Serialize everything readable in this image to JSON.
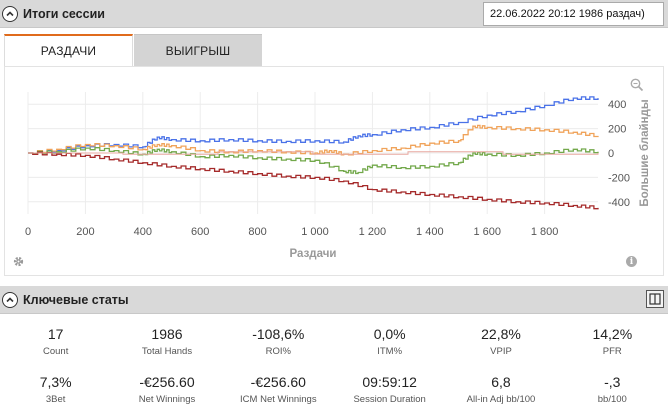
{
  "session_header": {
    "title": "Итоги сессии",
    "selected_session": "22.06.2022 20:12 1986 раздач)"
  },
  "tabs": [
    {
      "label": "РАЗДАЧИ",
      "active": true
    },
    {
      "label": "ВЫИГРЫШ",
      "active": false
    }
  ],
  "chart_data": {
    "type": "line",
    "xlabel": "Раздачи",
    "ylabel": "Большие блайнды",
    "x_ticks": [
      "0",
      "200",
      "400",
      "600",
      "800",
      "1 000",
      "1 200",
      "1 400",
      "1 600",
      "1 800"
    ],
    "y_ticks": [
      "400",
      "200",
      "0",
      "-200",
      "-400"
    ],
    "xlim": [
      0,
      1986
    ],
    "ylim": [
      -500,
      500
    ],
    "grid": true,
    "series": [
      {
        "color": "#4a72e8",
        "x": [
          0,
          100,
          200,
          300,
          400,
          450,
          500,
          600,
          700,
          800,
          900,
          1000,
          1100,
          1150,
          1200,
          1300,
          1400,
          1500,
          1600,
          1700,
          1800,
          1900,
          1986
        ],
        "y": [
          0,
          20,
          60,
          70,
          50,
          130,
          110,
          100,
          110,
          100,
          95,
          100,
          90,
          140,
          150,
          190,
          210,
          250,
          310,
          340,
          390,
          450,
          450
        ]
      },
      {
        "color": "#f0a35a",
        "x": [
          0,
          100,
          200,
          300,
          400,
          450,
          500,
          600,
          700,
          800,
          900,
          1000,
          1050,
          1100,
          1200,
          1300,
          1400,
          1500,
          1550,
          1600,
          1700,
          1800,
          1900,
          1986
        ],
        "y": [
          0,
          30,
          70,
          60,
          30,
          70,
          60,
          20,
          10,
          20,
          10,
          0,
          20,
          -10,
          20,
          40,
          80,
          100,
          220,
          210,
          200,
          190,
          170,
          140
        ]
      },
      {
        "color": "#72a84a",
        "x": [
          0,
          100,
          200,
          300,
          400,
          450,
          500,
          600,
          700,
          800,
          900,
          1000,
          1100,
          1150,
          1200,
          1300,
          1400,
          1500,
          1550,
          1600,
          1700,
          1800,
          1900,
          1986
        ],
        "y": [
          0,
          10,
          40,
          20,
          -10,
          30,
          10,
          -30,
          -20,
          -40,
          -50,
          -60,
          -150,
          -160,
          -100,
          -120,
          -110,
          -80,
          0,
          -10,
          -20,
          0,
          30,
          10
        ]
      },
      {
        "color": "#a52a2a",
        "x": [
          0,
          100,
          200,
          300,
          400,
          500,
          600,
          700,
          800,
          900,
          1000,
          1100,
          1200,
          1300,
          1400,
          1500,
          1600,
          1700,
          1800,
          1900,
          1986
        ],
        "y": [
          0,
          -10,
          -20,
          -50,
          -80,
          -110,
          -130,
          -150,
          -170,
          -190,
          -200,
          -230,
          -300,
          -320,
          -340,
          -360,
          -380,
          -400,
          -410,
          -430,
          -450
        ]
      },
      {
        "color": "#e8a8a0",
        "x": [
          0,
          1986
        ],
        "y": [
          0,
          0
        ]
      }
    ]
  },
  "stats_header": {
    "title": "Ключевые статы"
  },
  "stats_rows": [
    [
      {
        "value": "17",
        "label": "Count"
      },
      {
        "value": "1986",
        "label": "Total Hands"
      },
      {
        "value": "-108,6%",
        "label": "ROI%"
      },
      {
        "value": "0,0%",
        "label": "ITM%"
      },
      {
        "value": "22,8%",
        "label": "VPIP"
      },
      {
        "value": "14,2%",
        "label": "PFR"
      }
    ],
    [
      {
        "value": "7,3%",
        "label": "3Bet"
      },
      {
        "value": "-€256.60",
        "label": "Net Winnings"
      },
      {
        "value": "-€256.60",
        "label": "ICM Net Winnings"
      },
      {
        "value": "09:59:12",
        "label": "Session Duration"
      },
      {
        "value": "6,8",
        "label": "All-in Adj bb/100"
      },
      {
        "value": "-,3",
        "label": "bb/100"
      }
    ]
  ],
  "icons": {
    "collapse": "chevron-up-icon",
    "zoom": "zoom-icon",
    "settings": "gear-icon",
    "info": "info-icon",
    "layout": "layout-icon"
  }
}
